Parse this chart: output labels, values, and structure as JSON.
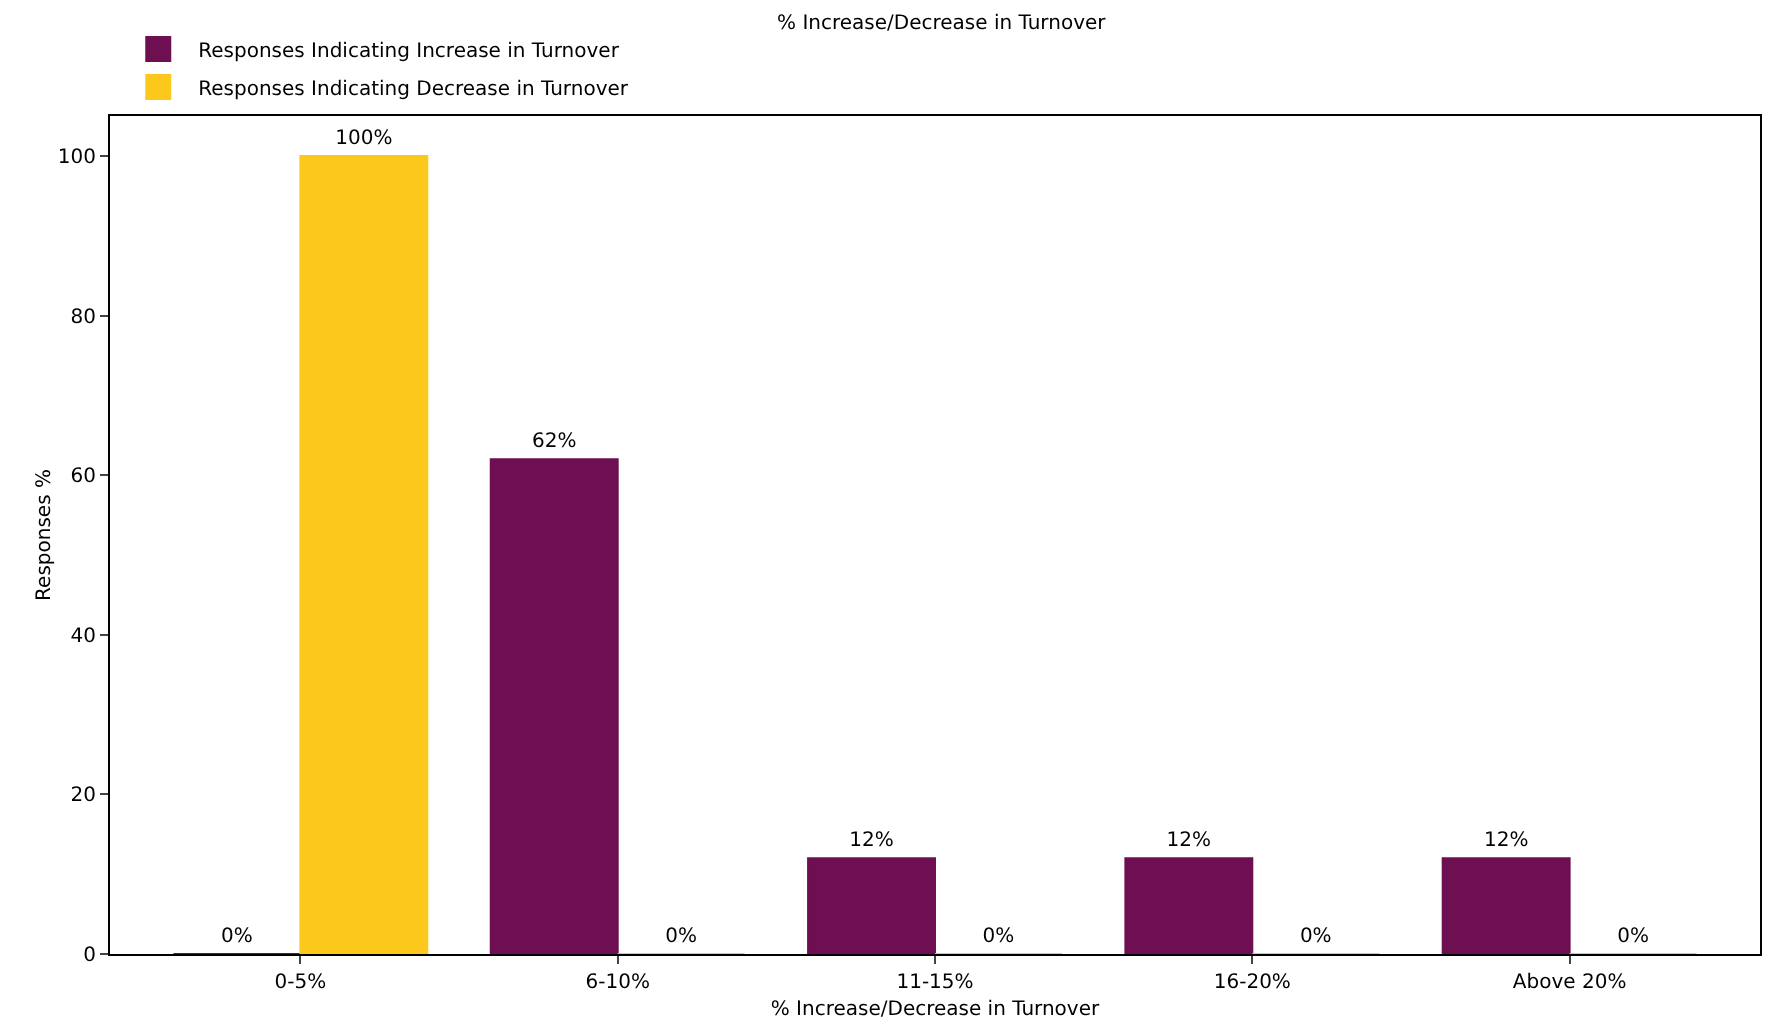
{
  "chart_data": {
    "type": "bar",
    "title": "% Increase/Decrease in Turnover",
    "xlabel": "% Increase/Decrease in Turnover",
    "ylabel": "Responses %",
    "categories": [
      "0-5%",
      "6-10%",
      "11-15%",
      "16-20%",
      "Above 20%"
    ],
    "series": [
      {
        "name": "Responses Indicating Increase in Turnover",
        "color": "#6e0f52",
        "values": [
          0,
          62,
          12,
          12,
          12
        ],
        "value_labels": [
          "0%",
          "62%",
          "12%",
          "12%",
          "12%"
        ]
      },
      {
        "name": "Responses Indicating Decrease in Turnover",
        "color": "#fcc81c",
        "values": [
          100,
          0,
          0,
          0,
          0
        ],
        "value_labels": [
          "100%",
          "0%",
          "0%",
          "0%",
          "0%"
        ]
      }
    ],
    "ylim": [
      0,
      105
    ],
    "yticks": [
      0,
      20,
      40,
      60,
      80,
      100
    ],
    "grid": false,
    "legend": "top left"
  }
}
